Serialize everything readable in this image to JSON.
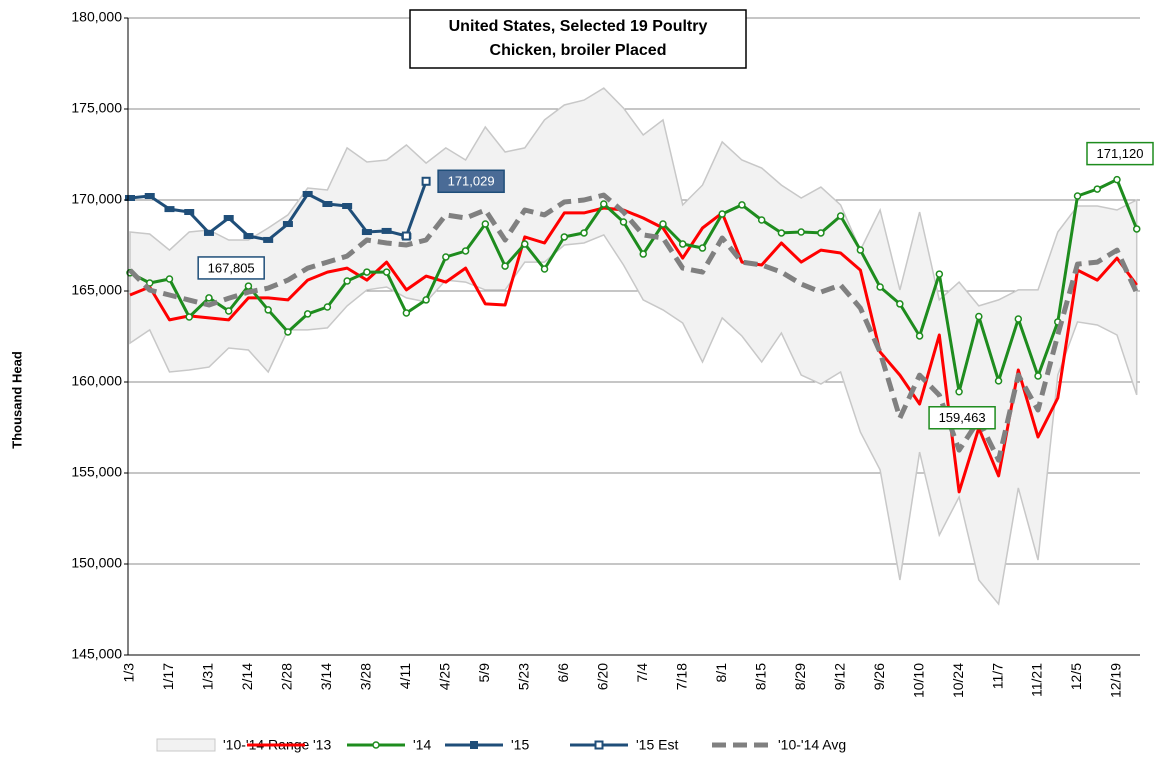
{
  "chart_data": {
    "type": "line",
    "title": [
      "United States, Selected 19 Poultry",
      "Chicken, broiler Placed"
    ],
    "y_label": "Thousand Head",
    "categories": [
      "1/3",
      null,
      "1/17",
      null,
      "1/31",
      null,
      "2/14",
      null,
      "2/28",
      null,
      "3/14",
      null,
      "3/28",
      null,
      "4/11",
      null,
      "4/25",
      null,
      "5/9",
      null,
      "5/23",
      null,
      "6/6",
      null,
      "6/20",
      null,
      "7/4",
      null,
      "7/18",
      null,
      "8/1",
      null,
      "8/15",
      null,
      "8/29",
      null,
      "9/12",
      null,
      "9/26",
      null,
      "10/10",
      null,
      "10/24",
      null,
      "11/7",
      null,
      "11/21",
      null,
      "12/5",
      null,
      "12/19",
      null
    ],
    "ylim": [
      145000,
      180000
    ],
    "yticks": [
      {
        "value": 145000,
        "label": "145,000"
      },
      {
        "value": 150000,
        "label": "150,000"
      },
      {
        "value": 155000,
        "label": "155,000"
      },
      {
        "value": 160000,
        "label": "160,000"
      },
      {
        "value": 165000,
        "label": "165,000"
      },
      {
        "value": 170000,
        "label": "170,000"
      },
      {
        "value": 175000,
        "label": "175,000"
      },
      {
        "value": 180000,
        "label": "180,000"
      }
    ],
    "grid": true,
    "legend": "bottom",
    "series": [
      {
        "name": "'10-'14 Range",
        "style": "range",
        "color": "#f2f2f2",
        "edge": "#c8c8c8",
        "lower": [
          162140,
          162860,
          160550,
          160660,
          160820,
          161870,
          161760,
          160550,
          162860,
          162860,
          162970,
          164180,
          165060,
          165220,
          164620,
          164400,
          165600,
          165490,
          165060,
          165060,
          166590,
          166590,
          167530,
          167640,
          168080,
          166430,
          164510,
          163960,
          163240,
          161100,
          163520,
          162530,
          161100,
          162690,
          160380,
          159890,
          160550,
          157250,
          155170,
          149120,
          156150,
          151590,
          153680,
          149120,
          147800,
          154180,
          150220,
          160380,
          163300,
          163130,
          162580,
          159290
        ],
        "upper": [
          168240,
          168130,
          167250,
          168240,
          168350,
          167800,
          167800,
          168460,
          169180,
          170660,
          170550,
          172860,
          172090,
          172200,
          173020,
          172030,
          172860,
          172200,
          174010,
          172640,
          172860,
          174400,
          175220,
          175490,
          176150,
          175050,
          173570,
          174400,
          169730,
          170820,
          173190,
          172200,
          171760,
          170820,
          170110,
          170710,
          169730,
          167250,
          169450,
          165060,
          169340,
          164510,
          165490,
          164180,
          164510,
          165060,
          165060,
          168240,
          169670,
          169670,
          169450,
          170000
        ]
      },
      {
        "name": "'13",
        "color": "#ff0000",
        "values": [
          164780,
          165220,
          163410,
          163630,
          163520,
          163410,
          164620,
          164620,
          164510,
          165600,
          166040,
          166260,
          165600,
          166590,
          165060,
          165820,
          165490,
          166260,
          164290,
          164230,
          167970,
          167640,
          169290,
          169290,
          169560,
          169450,
          169010,
          168460,
          166810,
          168460,
          169290,
          166590,
          166430,
          167640,
          166590,
          167250,
          167090,
          166150,
          161650,
          160380,
          158790,
          162580,
          153960,
          157470,
          154840,
          160660,
          156980,
          159120,
          166150,
          165600,
          166810,
          165330
        ]
      },
      {
        "name": "'14",
        "color": "#1e8c1e",
        "marker": "circle",
        "values": [
          166000,
          165440,
          165660,
          163570,
          164620,
          163900,
          165270,
          163960,
          162750,
          163740,
          164120,
          165550,
          166040,
          166040,
          163790,
          164510,
          166870,
          167200,
          168680,
          166370,
          167580,
          166210,
          167970,
          168190,
          169780,
          168790,
          167030,
          168680,
          167580,
          167360,
          169230,
          169730,
          168900,
          168190,
          168240,
          168190,
          169120,
          167250,
          165220,
          164290,
          162530,
          165930,
          159463,
          163600,
          160060,
          163460,
          160330,
          163300,
          170220,
          170600,
          171120,
          168410
        ],
        "value_labels": [
          null,
          null,
          null,
          null,
          null,
          null,
          null,
          null,
          null,
          null,
          null,
          null,
          null,
          null,
          null,
          null,
          null,
          null,
          null,
          null,
          null,
          null,
          null,
          null,
          null,
          null,
          null,
          null,
          null,
          null,
          null,
          null,
          null,
          null,
          null,
          null,
          null,
          null,
          null,
          null,
          null,
          null,
          "159,463",
          null,
          null,
          null,
          null,
          null,
          null,
          null,
          "171,120",
          null
        ]
      },
      {
        "name": "'15",
        "color": "#1f4e79",
        "marker": "bar",
        "values": [
          170110,
          170220,
          169500,
          169340,
          168190,
          169010,
          168020,
          167805,
          168680,
          170330,
          169780,
          169670,
          168240,
          168300,
          168020,
          null,
          null,
          null,
          null,
          null,
          null,
          null,
          null,
          null,
          null,
          null,
          null,
          null,
          null,
          null,
          null,
          null,
          null,
          null,
          null,
          null,
          null,
          null,
          null,
          null,
          null,
          null,
          null,
          null,
          null,
          null,
          null,
          null,
          null,
          null,
          null,
          null
        ],
        "value_labels": [
          null,
          null,
          null,
          null,
          null,
          null,
          null,
          "167,805",
          null,
          null,
          null,
          null,
          null,
          null,
          null,
          null,
          null,
          null,
          null,
          null,
          null,
          null,
          null,
          null,
          null,
          null,
          null,
          null,
          null,
          null,
          null,
          null,
          null,
          null,
          null,
          null,
          null,
          null,
          null,
          null,
          null,
          null,
          null,
          null,
          null,
          null,
          null,
          null,
          null,
          null,
          null,
          null
        ]
      },
      {
        "name": "'15 Est",
        "color": "#1f4e79",
        "marker": "square",
        "values": [
          null,
          null,
          null,
          null,
          null,
          null,
          null,
          null,
          null,
          null,
          null,
          null,
          null,
          null,
          168020,
          171029,
          null,
          null,
          null,
          null,
          null,
          null,
          null,
          null,
          null,
          null,
          null,
          null,
          null,
          null,
          null,
          null,
          null,
          null,
          null,
          null,
          null,
          null,
          null,
          null,
          null,
          null,
          null,
          null,
          null,
          null,
          null,
          null,
          null,
          null,
          null,
          null
        ],
        "value_labels": [
          null,
          null,
          null,
          null,
          null,
          null,
          null,
          null,
          null,
          null,
          null,
          null,
          null,
          null,
          null,
          "171,029",
          null,
          null,
          null,
          null,
          null,
          null,
          null,
          null,
          null,
          null,
          null,
          null,
          null,
          null,
          null,
          null,
          null,
          null,
          null,
          null,
          null,
          null,
          null,
          null,
          null,
          null,
          null,
          null,
          null,
          null,
          null,
          null,
          null,
          null,
          null,
          null
        ]
      },
      {
        "name": "'10-'14 Avg",
        "color": "#808080",
        "dash": true,
        "values": [
          166150,
          165050,
          164780,
          164500,
          164230,
          164600,
          164940,
          165160,
          165600,
          166260,
          166590,
          166920,
          167800,
          167640,
          167530,
          167800,
          169180,
          169010,
          169450,
          167800,
          169450,
          169180,
          169890,
          170000,
          170270,
          169340,
          168080,
          167910,
          166260,
          166040,
          167910,
          166590,
          166430,
          166040,
          165380,
          164940,
          165330,
          164060,
          161640,
          158020,
          160380,
          159280,
          156260,
          157910,
          155710,
          160380,
          158460,
          162580,
          166480,
          166590,
          167250,
          164890
        ]
      }
    ]
  }
}
